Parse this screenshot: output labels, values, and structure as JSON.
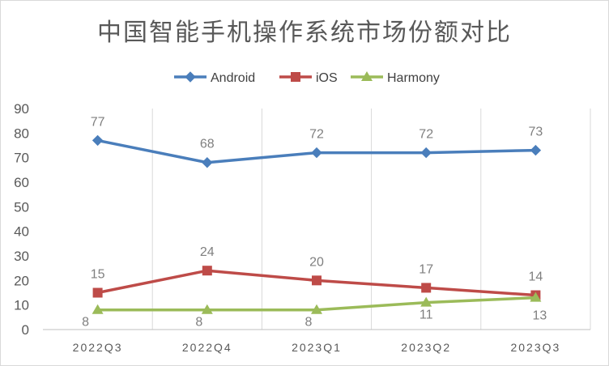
{
  "chart_data": {
    "type": "line",
    "title": "中国智能手机操作系统市场份额对比",
    "categories": [
      "2022Q3",
      "2022Q4",
      "2023Q1",
      "2023Q2",
      "2023Q3"
    ],
    "series": [
      {
        "name": "Android",
        "values": [
          77,
          68,
          72,
          72,
          73
        ],
        "color": "#4a7ebb",
        "marker": "diamond"
      },
      {
        "name": "iOS",
        "values": [
          15,
          24,
          20,
          17,
          14
        ],
        "color": "#be4b48",
        "marker": "square"
      },
      {
        "name": "Harmony",
        "values": [
          8,
          8,
          8,
          11,
          13
        ],
        "color": "#9bbb59",
        "marker": "triangle"
      }
    ],
    "ylim": [
      0,
      90
    ],
    "yticks": [
      0,
      10,
      20,
      30,
      40,
      50,
      60,
      70,
      80,
      90
    ],
    "grid": "vertical",
    "legend": "top-center",
    "data_labels": true
  }
}
